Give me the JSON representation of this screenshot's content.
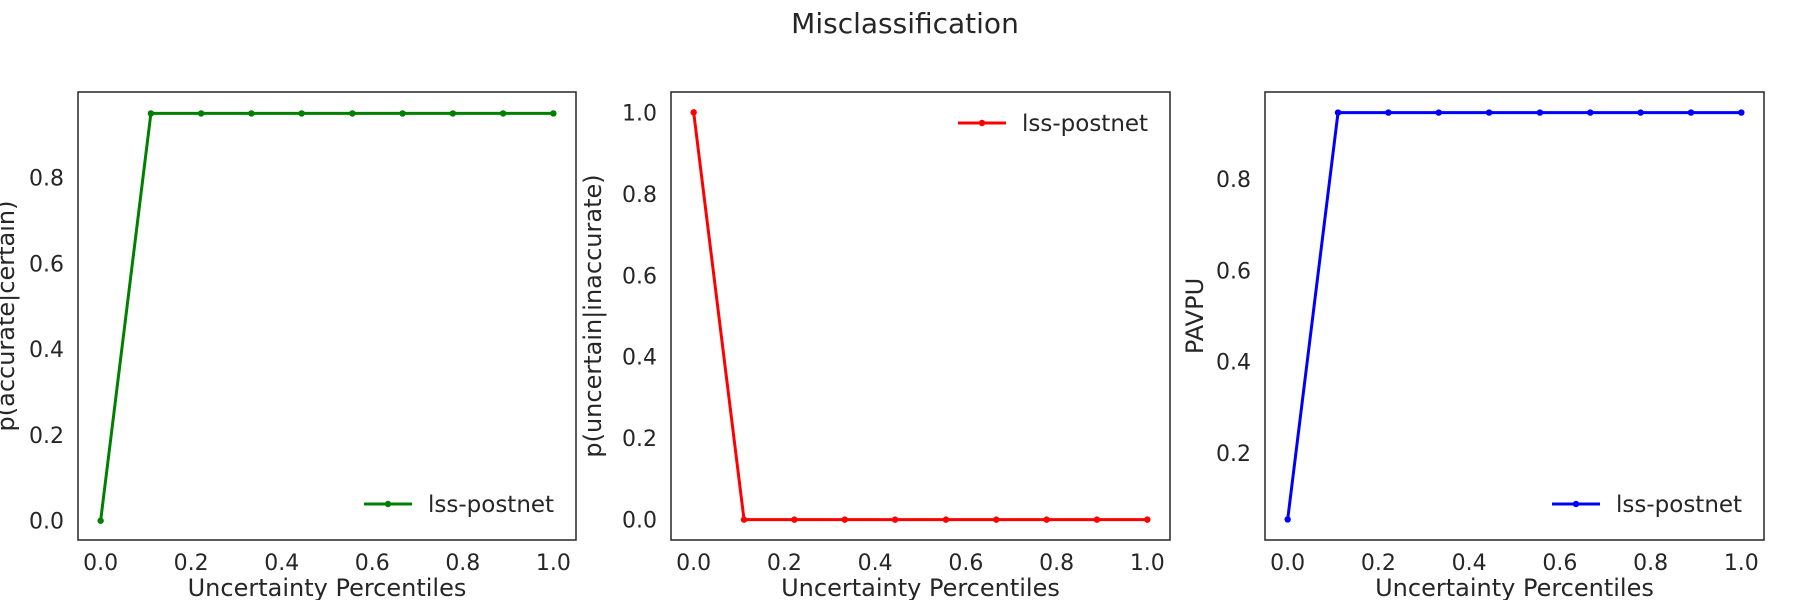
{
  "figure_title": "Misclassification",
  "chart_data": [
    {
      "type": "line",
      "xlabel": "Uncertainty Percentiles",
      "ylabel": "p(accurate|certain)",
      "xlim": [
        -0.05,
        1.05
      ],
      "ylim": [
        -0.045,
        1.0
      ],
      "xticks": [
        "0.0",
        "0.2",
        "0.4",
        "0.6",
        "0.8",
        "1.0"
      ],
      "yticks": [
        "0.0",
        "0.2",
        "0.4",
        "0.6",
        "0.8"
      ],
      "legend_position": "lower-right",
      "color": "#008000",
      "x": [
        0.0,
        0.111,
        0.222,
        0.333,
        0.444,
        0.556,
        0.667,
        0.778,
        0.889,
        1.0
      ],
      "series": [
        {
          "name": "lss-postnet",
          "values": [
            0.0,
            0.95,
            0.95,
            0.95,
            0.95,
            0.95,
            0.95,
            0.95,
            0.95,
            0.95
          ]
        }
      ]
    },
    {
      "type": "line",
      "xlabel": "Uncertainty Percentiles",
      "ylabel": "p(uncertain|inaccurate)",
      "xlim": [
        -0.05,
        1.05
      ],
      "ylim": [
        -0.05,
        1.05
      ],
      "xticks": [
        "0.0",
        "0.2",
        "0.4",
        "0.6",
        "0.8",
        "1.0"
      ],
      "yticks": [
        "0.0",
        "0.2",
        "0.4",
        "0.6",
        "0.8",
        "1.0"
      ],
      "legend_position": "upper-right",
      "color": "#ff0000",
      "x": [
        0.0,
        0.111,
        0.222,
        0.333,
        0.444,
        0.556,
        0.667,
        0.778,
        0.889,
        1.0
      ],
      "series": [
        {
          "name": "lss-postnet",
          "values": [
            1.0,
            0.0,
            0.0,
            0.0,
            0.0,
            0.0,
            0.0,
            0.0,
            0.0,
            0.0
          ]
        }
      ]
    },
    {
      "type": "line",
      "xlabel": "Uncertainty Percentiles",
      "ylabel": "PAVPU",
      "xlim": [
        -0.05,
        1.05
      ],
      "ylim": [
        0.01,
        0.99
      ],
      "xticks": [
        "0.0",
        "0.2",
        "0.4",
        "0.6",
        "0.8",
        "1.0"
      ],
      "yticks": [
        "0.2",
        "0.4",
        "0.6",
        "0.8"
      ],
      "legend_position": "lower-right",
      "color": "#0000ff",
      "x": [
        0.0,
        0.111,
        0.222,
        0.333,
        0.444,
        0.556,
        0.667,
        0.778,
        0.889,
        1.0
      ],
      "series": [
        {
          "name": "lss-postnet",
          "values": [
            0.055,
            0.945,
            0.945,
            0.945,
            0.945,
            0.945,
            0.945,
            0.945,
            0.945,
            0.945
          ]
        }
      ]
    }
  ]
}
